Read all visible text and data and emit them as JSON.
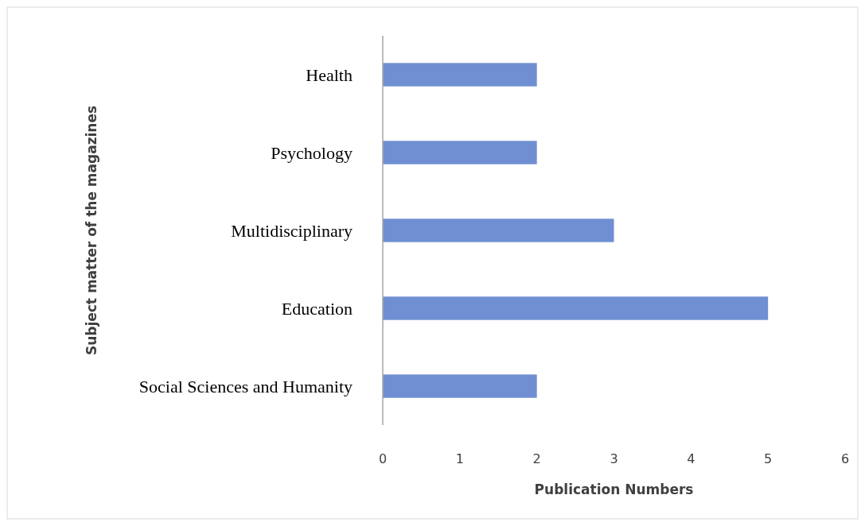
{
  "chart_data": {
    "type": "bar",
    "orientation": "horizontal",
    "xlabel": "Publication Numbers",
    "ylabel": "Subject matter of the magazines",
    "categories": [
      "Health",
      "Psychology",
      "Multidisciplinary",
      "Education",
      "Social Sciences and Humanity"
    ],
    "values": [
      2,
      2,
      3,
      5,
      2
    ],
    "color": "#6f8fd2",
    "xlim": [
      0,
      6
    ],
    "xticks": [
      0,
      1,
      2,
      3,
      4,
      5,
      6
    ],
    "grid": false
  }
}
